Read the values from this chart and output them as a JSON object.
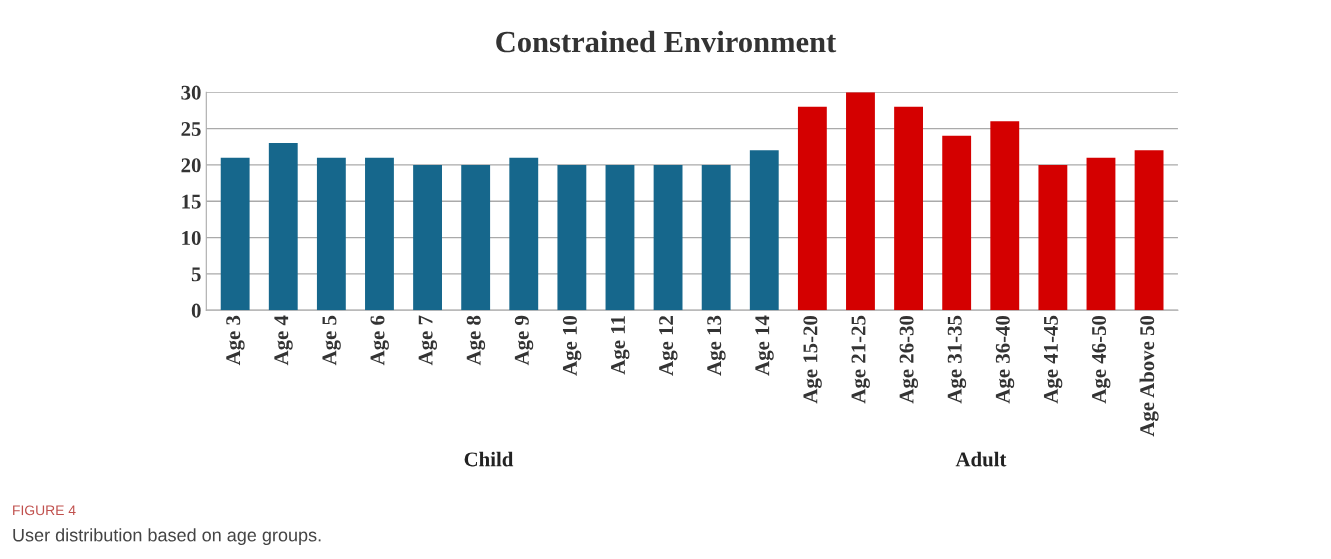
{
  "chart_data": {
    "type": "bar",
    "title": "Constrained Environment",
    "categories": [
      "Age 3",
      "Age 4",
      "Age 5",
      "Age 6",
      "Age 7",
      "Age 8",
      "Age 9",
      "Age 10",
      "Age 11",
      "Age 12",
      "Age 13",
      "Age 14",
      "Age 15-20",
      "Age 21-25",
      "Age 26-30",
      "Age 31-35",
      "Age 36-40",
      "Age 41-45",
      "Age 46-50",
      "Age Above 50"
    ],
    "values": [
      21,
      23,
      21,
      21,
      20,
      20,
      21,
      20,
      20,
      20,
      20,
      22,
      28,
      30,
      28,
      24,
      26,
      20,
      21,
      22
    ],
    "colors": [
      "#16678c",
      "#16678c",
      "#16678c",
      "#16678c",
      "#16678c",
      "#16678c",
      "#16678c",
      "#16678c",
      "#16678c",
      "#16678c",
      "#16678c",
      "#16678c",
      "#d40000",
      "#d40000",
      "#d40000",
      "#d40000",
      "#d40000",
      "#d40000",
      "#d40000",
      "#d40000"
    ],
    "ylim": [
      0,
      30
    ],
    "yticks": [
      0,
      5,
      10,
      15,
      20,
      25,
      30
    ],
    "grid": "y",
    "annotations": [
      "Child",
      "Adult",
      "FIGURE 4",
      "User distribution based on age groups."
    ]
  }
}
